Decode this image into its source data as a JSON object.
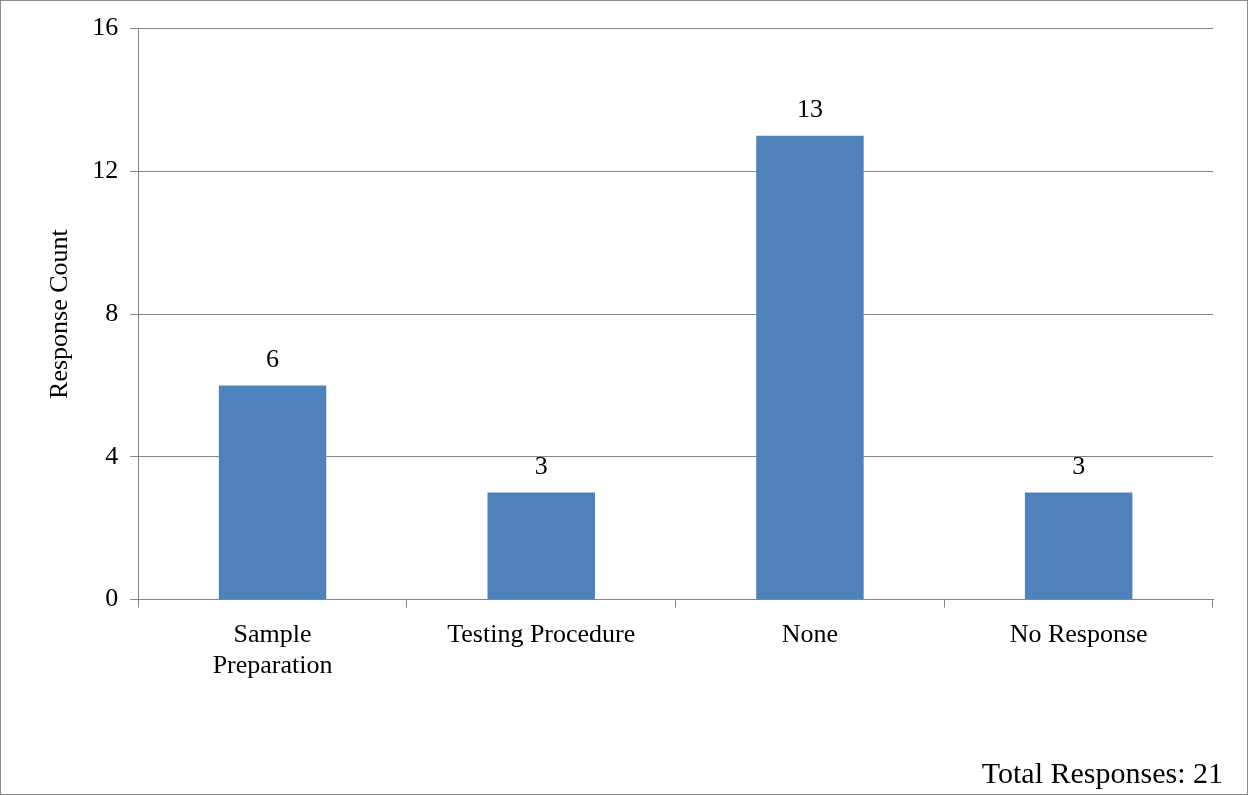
{
  "chart_data": {
    "type": "bar",
    "ylabel": "Response Count",
    "categories": [
      "Sample Preparation",
      "Testing Procedure",
      "None",
      "No Response"
    ],
    "values": [
      6,
      3,
      13,
      3
    ],
    "color": "#4f81bd",
    "ylim": [
      0,
      16
    ],
    "yticks": [
      0,
      4,
      8,
      12,
      16
    ],
    "grid": "y",
    "data_labels": true,
    "legend": false,
    "annotations": [
      "Total Responses: 21"
    ]
  }
}
